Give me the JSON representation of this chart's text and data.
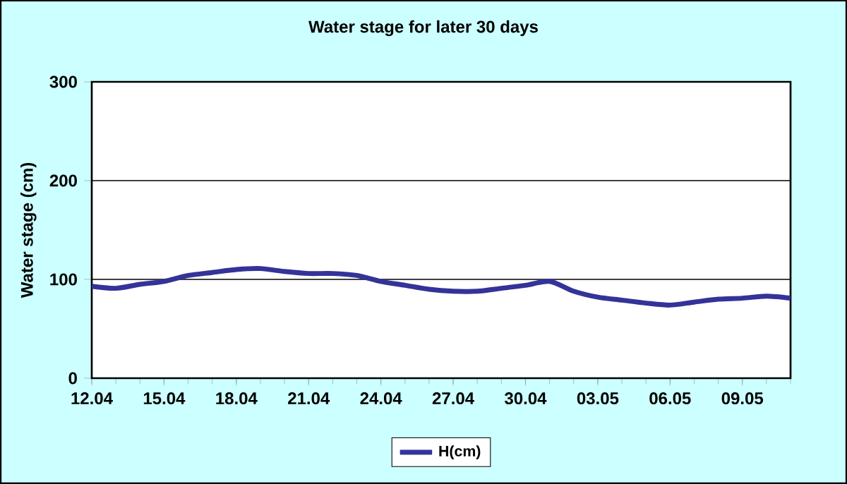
{
  "chart_data": {
    "type": "line",
    "title": "Water stage for later 30 days",
    "ylabel": "Water stage (cm)",
    "categories": [
      "12.04",
      null,
      null,
      "15.04",
      null,
      null,
      "18.04",
      null,
      null,
      "21.04",
      null,
      null,
      "24.04",
      null,
      null,
      "27.04",
      null,
      null,
      "30.04",
      null,
      null,
      "03.05",
      null,
      null,
      "06.05",
      null,
      null,
      "09.05",
      null,
      null
    ],
    "series": [
      {
        "name": "H(cm)",
        "color": "#333399",
        "values": [
          93,
          91,
          95,
          98,
          104,
          107,
          110,
          111,
          108,
          106,
          106,
          104,
          98,
          94,
          90,
          88,
          88,
          91,
          94,
          98,
          88,
          82,
          79,
          76,
          74,
          77,
          80,
          81,
          83,
          81
        ]
      }
    ],
    "ylim": [
      0,
      300
    ],
    "yticks": [
      0,
      100,
      200,
      300
    ],
    "grid": "y",
    "legend": "bottom",
    "marker": "none",
    "line_style": "solid"
  }
}
